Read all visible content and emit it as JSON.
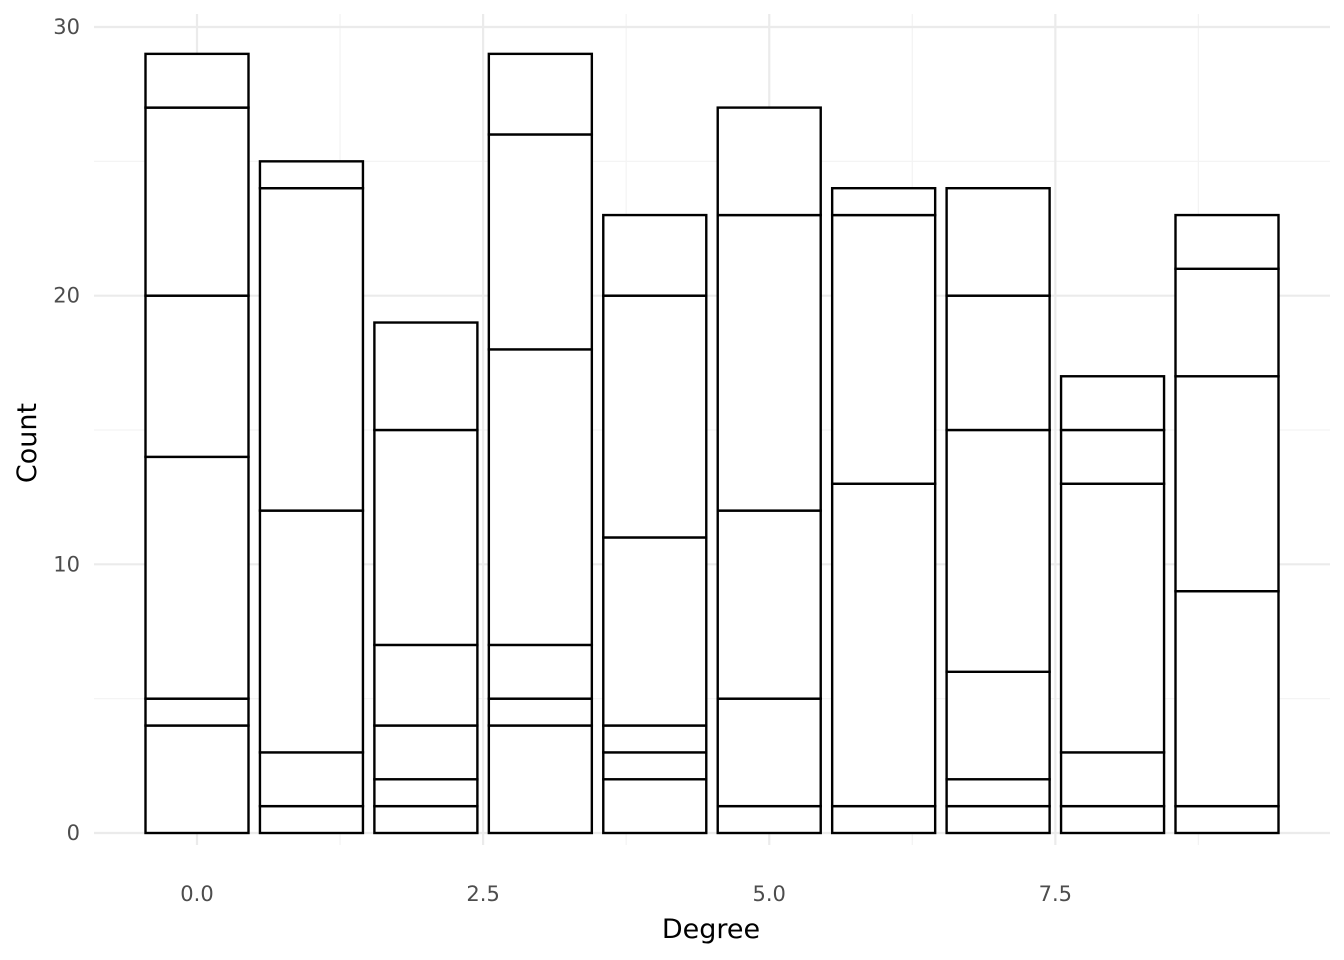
{
  "chart_data": {
    "type": "bar",
    "stacked": true,
    "xlabel": "Degree",
    "ylabel": "Count",
    "xlim": [
      -0.9,
      9.9
    ],
    "ylim": [
      0,
      30
    ],
    "x_ticks": [
      {
        "value": 0,
        "label": "0.0"
      },
      {
        "value": 2.5,
        "label": "2.5"
      },
      {
        "value": 5,
        "label": "5.0"
      },
      {
        "value": 7.5,
        "label": "7.5"
      }
    ],
    "y_ticks": [
      {
        "value": 0,
        "label": "0"
      },
      {
        "value": 10,
        "label": "10"
      },
      {
        "value": 20,
        "label": "20"
      },
      {
        "value": 30,
        "label": "30"
      }
    ],
    "grid": true,
    "bar_width": 0.9,
    "bars": [
      {
        "x": 0,
        "total": 29,
        "boundaries": [
          0,
          4,
          5,
          14,
          20,
          27,
          29
        ]
      },
      {
        "x": 1,
        "total": 25,
        "boundaries": [
          0,
          1,
          3,
          12,
          24,
          25
        ]
      },
      {
        "x": 2,
        "total": 19,
        "boundaries": [
          0,
          1,
          2,
          4,
          7,
          15,
          19
        ]
      },
      {
        "x": 3,
        "total": 29,
        "boundaries": [
          0,
          4,
          5,
          7,
          18,
          26,
          29
        ]
      },
      {
        "x": 4,
        "total": 23,
        "boundaries": [
          0,
          2,
          3,
          4,
          11,
          20,
          23
        ]
      },
      {
        "x": 5,
        "total": 27,
        "boundaries": [
          0,
          1,
          5,
          12,
          23,
          27
        ]
      },
      {
        "x": 6,
        "total": 24,
        "boundaries": [
          0,
          1,
          13,
          23,
          24
        ]
      },
      {
        "x": 7,
        "total": 24,
        "boundaries": [
          0,
          1,
          2,
          6,
          15,
          20,
          24
        ]
      },
      {
        "x": 8,
        "total": 17,
        "boundaries": [
          0,
          1,
          3,
          13,
          15,
          17
        ]
      },
      {
        "x": 9,
        "total": 23,
        "boundaries": [
          0,
          1,
          9,
          17,
          21,
          23
        ]
      }
    ]
  }
}
